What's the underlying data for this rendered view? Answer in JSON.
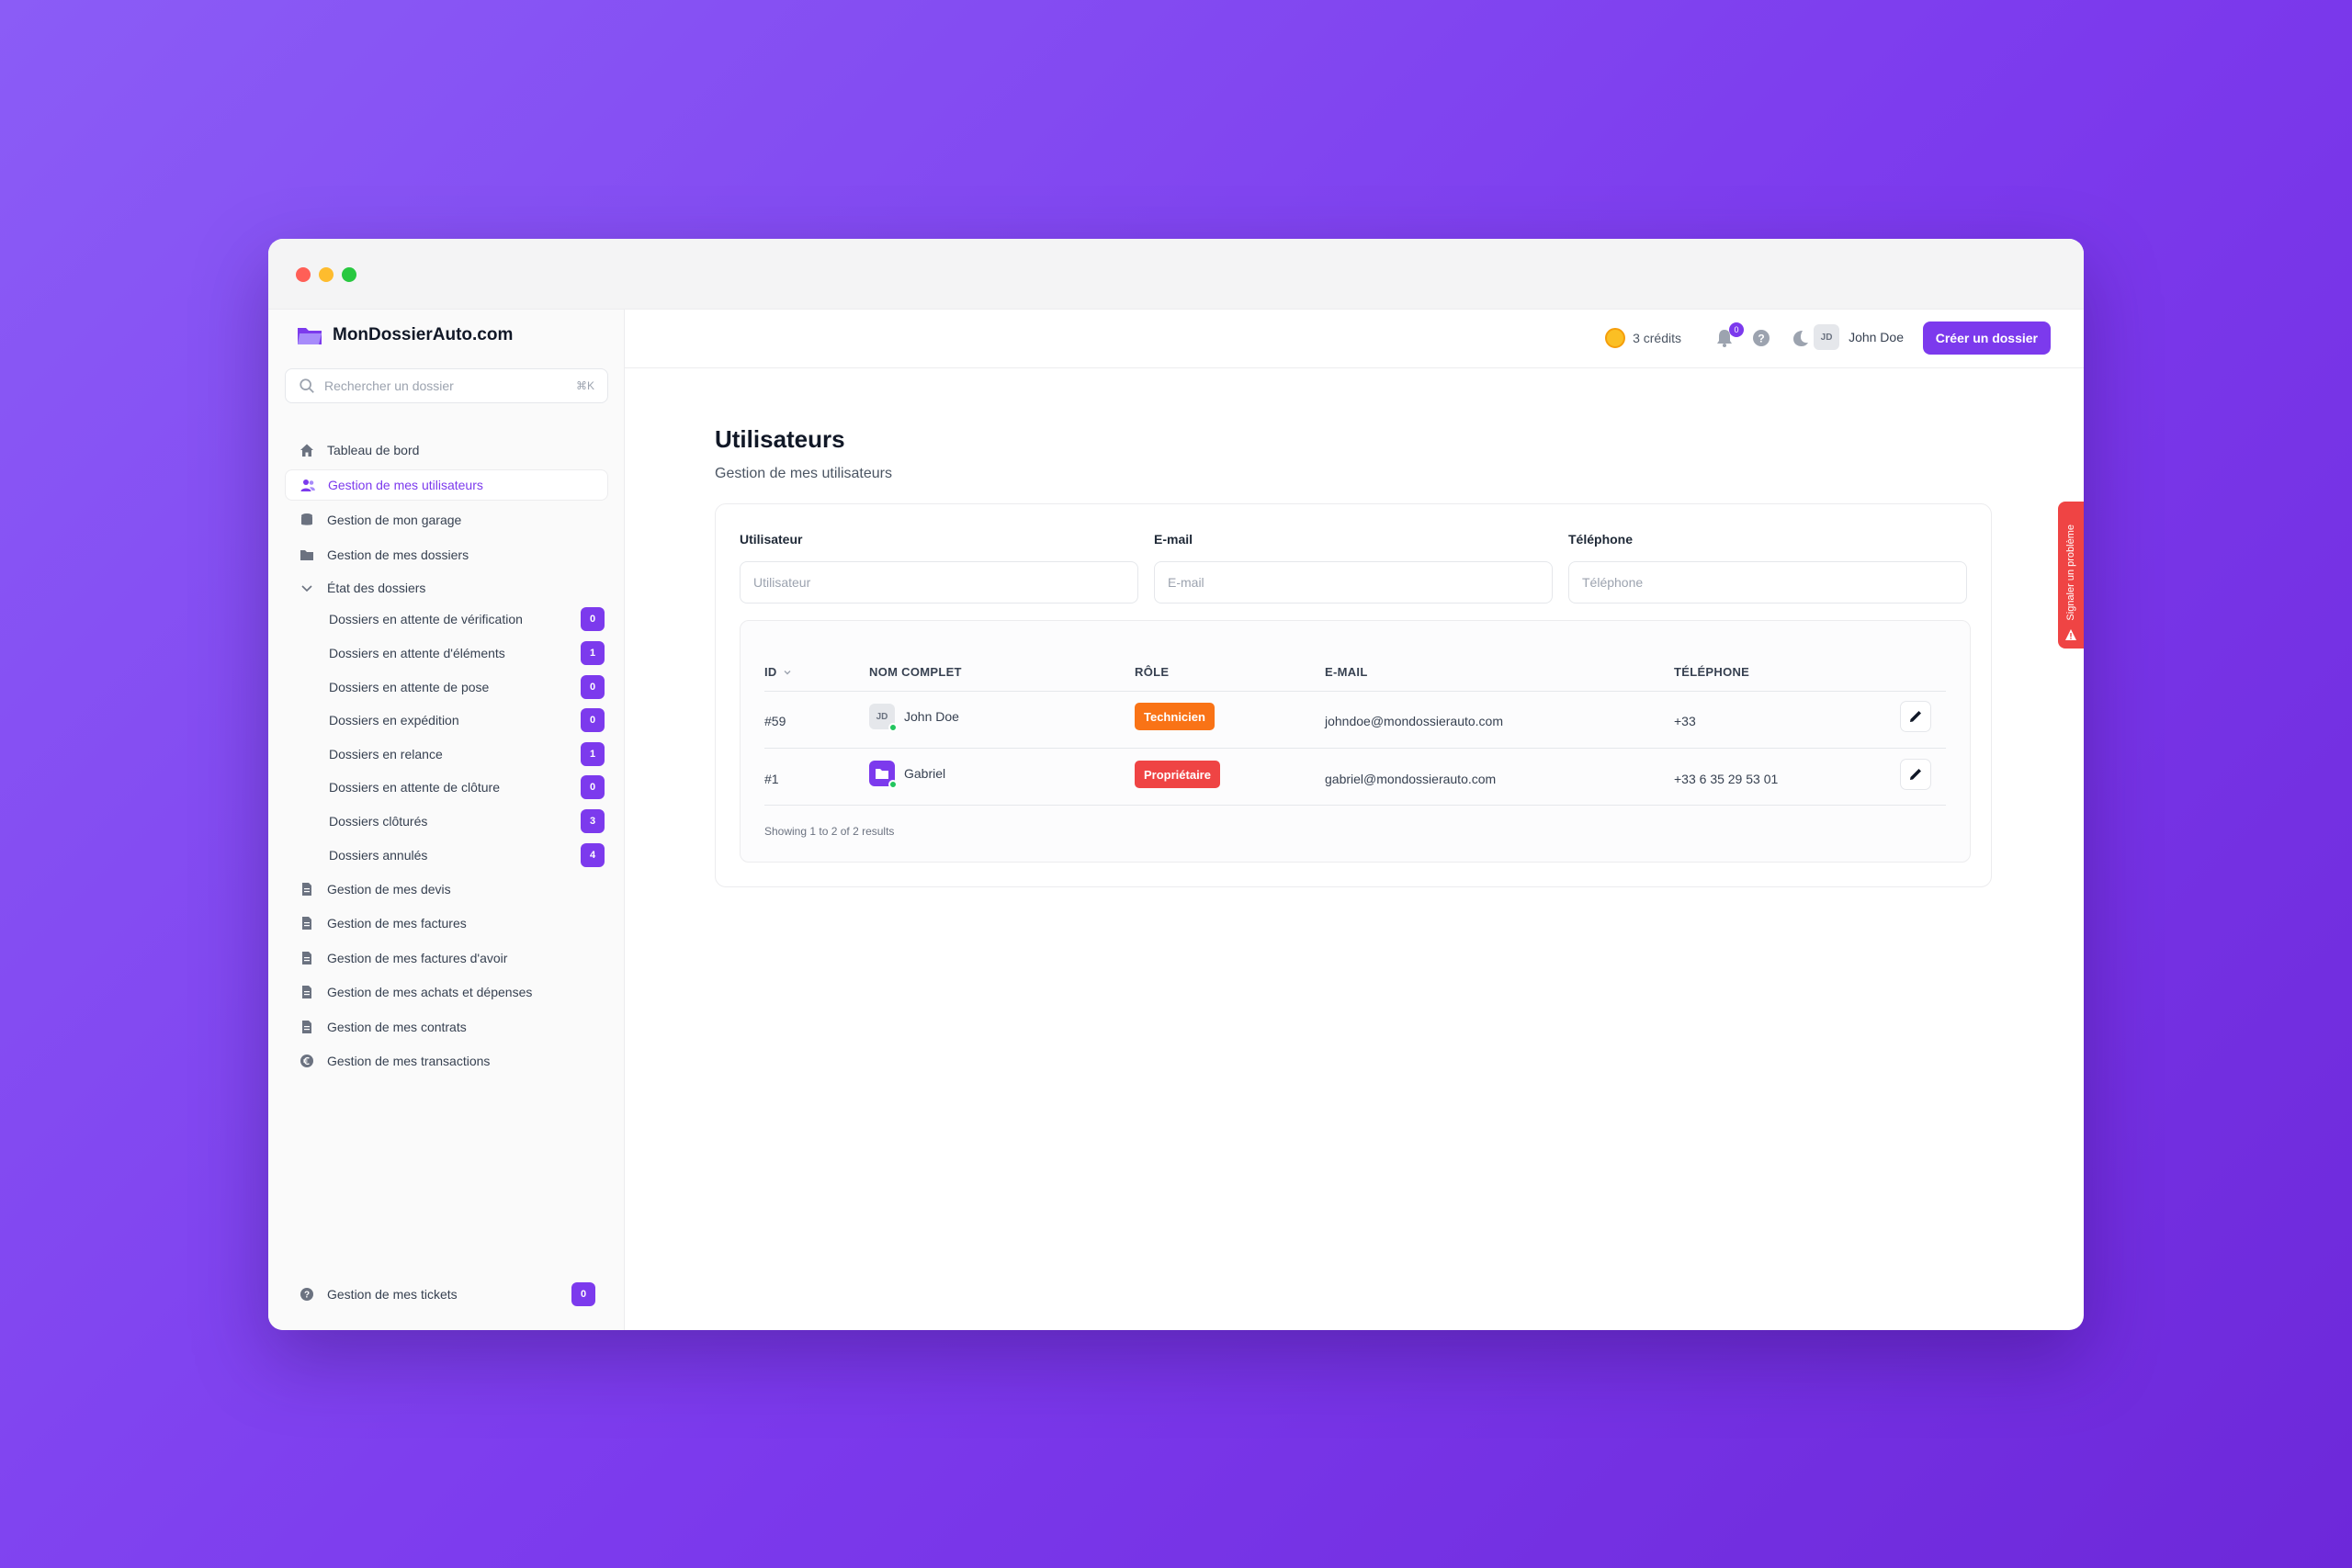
{
  "app": {
    "brand": "MonDossierAuto.com",
    "colors": {
      "accent": "#7c3aed",
      "danger": "#ef4444",
      "orange": "#f97316",
      "coin": "#fbbf24"
    }
  },
  "sidebar": {
    "search_placeholder": "Rechercher un dossier",
    "search_shortcut": "⌘K",
    "items": [
      {
        "label": "Tableau de bord",
        "icon": "home-icon"
      },
      {
        "label": "Gestion de mes utilisateurs",
        "icon": "users-icon",
        "active": true
      },
      {
        "label": "Gestion de mon garage",
        "icon": "database-icon"
      },
      {
        "label": "Gestion de mes dossiers",
        "icon": "folder-icon"
      },
      {
        "label": "État des dossiers",
        "icon": "chevron-down-icon"
      }
    ],
    "status_items": [
      {
        "label": "Dossiers en attente de vérification",
        "count": "0"
      },
      {
        "label": "Dossiers en attente d'éléments",
        "count": "1"
      },
      {
        "label": "Dossiers en attente de pose",
        "count": "0"
      },
      {
        "label": "Dossiers en expédition",
        "count": "0"
      },
      {
        "label": "Dossiers en relance",
        "count": "1"
      },
      {
        "label": "Dossiers en attente de clôture",
        "count": "0"
      },
      {
        "label": "Dossiers clôturés",
        "count": "3"
      },
      {
        "label": "Dossiers annulés",
        "count": "4"
      }
    ],
    "bottom_items": [
      {
        "label": "Gestion de mes devis",
        "icon": "file-icon"
      },
      {
        "label": "Gestion de mes factures",
        "icon": "file-icon"
      },
      {
        "label": "Gestion de mes factures d'avoir",
        "icon": "file-icon"
      },
      {
        "label": "Gestion de mes achats et dépenses",
        "icon": "file-icon"
      },
      {
        "label": "Gestion de mes contrats",
        "icon": "file-icon"
      },
      {
        "label": "Gestion de mes transactions",
        "icon": "euro-icon"
      }
    ],
    "tickets": {
      "label": "Gestion de mes tickets",
      "count": "0",
      "icon": "help-circle-icon"
    }
  },
  "topbar": {
    "credits": "3 crédits",
    "notifications_count": "0",
    "user_initials": "JD",
    "user_name": "John Doe",
    "create_button": "Créer un dossier"
  },
  "page": {
    "title": "Utilisateurs",
    "subtitle": "Gestion de mes utilisateurs",
    "filters": [
      {
        "label": "Utilisateur",
        "placeholder": "Utilisateur"
      },
      {
        "label": "E-mail",
        "placeholder": "E-mail"
      },
      {
        "label": "Téléphone",
        "placeholder": "Téléphone"
      }
    ],
    "table": {
      "headers": [
        "ID",
        "NOM COMPLET",
        "RÔLE",
        "E-MAIL",
        "TÉLÉPHONE"
      ],
      "rows": [
        {
          "id": "#59",
          "initials": "JD",
          "name": "John Doe",
          "role": "Technicien",
          "role_color": "#f97316",
          "email": "johndoe@mondossierauto.com",
          "phone": "+33"
        },
        {
          "id": "#1",
          "initials": "",
          "name": "Gabriel",
          "role": "Propriétaire",
          "role_color": "#ef4444",
          "email": "gabriel@mondossierauto.com",
          "phone": "+33 6 35 29 53 01"
        }
      ],
      "footer": "Showing 1 to 2 of 2 results"
    }
  },
  "report_tab": "Signaler un problème"
}
